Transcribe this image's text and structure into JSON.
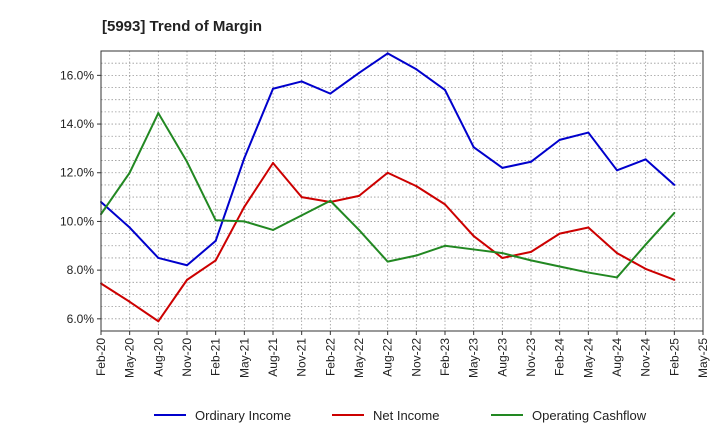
{
  "chart_data": {
    "type": "line",
    "title": "[5993]  Trend of Margin",
    "xlabel": "",
    "ylabel": "",
    "x": [
      "Feb-20",
      "May-20",
      "Aug-20",
      "Nov-20",
      "Feb-21",
      "May-21",
      "Aug-21",
      "Nov-21",
      "Feb-22",
      "May-22",
      "Aug-22",
      "Nov-22",
      "Feb-23",
      "May-23",
      "Aug-23",
      "Nov-23",
      "Feb-24",
      "May-24",
      "Aug-24",
      "Nov-24",
      "Feb-25",
      "May-25"
    ],
    "ylim": [
      5.5,
      17.0
    ],
    "yticks": [
      6.0,
      8.0,
      10.0,
      12.0,
      14.0,
      16.0
    ],
    "ytick_labels": [
      "6.0%",
      "8.0%",
      "10.0%",
      "12.0%",
      "14.0%",
      "16.0%"
    ],
    "grid": true,
    "legend_position": "bottom",
    "series": [
      {
        "name": "Ordinary Income",
        "color": "#0000cc",
        "values": [
          10.8,
          9.75,
          8.5,
          8.2,
          9.2,
          12.6,
          15.45,
          15.75,
          15.25,
          16.1,
          16.9,
          16.25,
          15.4,
          13.05,
          12.2,
          12.45,
          13.35,
          13.65,
          12.1,
          12.55,
          11.5,
          null
        ]
      },
      {
        "name": "Net Income",
        "color": "#cc0000",
        "values": [
          7.45,
          6.7,
          5.9,
          7.6,
          8.4,
          10.6,
          12.4,
          11.0,
          10.8,
          11.05,
          12.0,
          11.45,
          10.7,
          9.4,
          8.5,
          8.75,
          9.5,
          9.75,
          8.7,
          8.05,
          7.6,
          null
        ]
      },
      {
        "name": "Operating Cashflow",
        "color": "#228822",
        "values": [
          10.3,
          12.0,
          14.45,
          12.45,
          10.05,
          10.0,
          9.65,
          10.25,
          10.85,
          9.65,
          8.35,
          8.6,
          9.0,
          8.85,
          8.7,
          8.4,
          8.15,
          7.9,
          7.7,
          9.05,
          10.35,
          null
        ]
      }
    ]
  }
}
